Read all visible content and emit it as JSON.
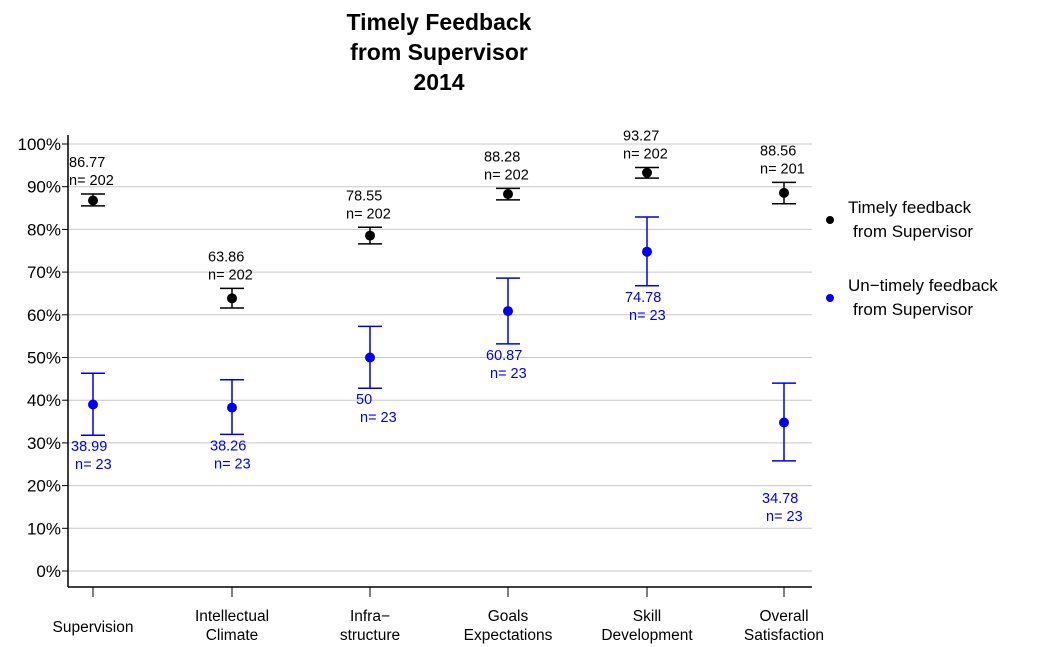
{
  "chart_data": {
    "type": "scatter",
    "title": [
      "Timely Feedback",
      "from Supervisor",
      "2014"
    ],
    "categories": [
      [
        "Supervision"
      ],
      [
        "Intellectual",
        "Climate"
      ],
      [
        "Infra−",
        "structure"
      ],
      [
        "Goals",
        "Expectations"
      ],
      [
        "Skill",
        "Development"
      ],
      [
        "Overall",
        "Satisfaction"
      ]
    ],
    "ylim": [
      0,
      100
    ],
    "yticks": [
      0,
      10,
      20,
      30,
      40,
      50,
      60,
      70,
      80,
      90,
      100
    ],
    "ytick_labels": [
      "0%",
      "10%",
      "20%",
      "30%",
      "40%",
      "50%",
      "60%",
      "70%",
      "80%",
      "90%",
      "100%"
    ],
    "grid": true,
    "legend_position": "right",
    "series": [
      {
        "name": [
          "Timely feedback",
          "from Supervisor"
        ],
        "color": "#000000",
        "values": [
          86.77,
          63.86,
          78.55,
          88.28,
          93.27,
          88.56
        ],
        "err_low": [
          85.5,
          61.6,
          76.6,
          86.9,
          92.0,
          86.0
        ],
        "err_high": [
          88.3,
          66.2,
          80.5,
          89.6,
          94.5,
          91.0
        ],
        "labels": [
          "86.77",
          "63.86",
          "78.55",
          "88.28",
          "93.27",
          "88.56"
        ],
        "n_labels": [
          "n= 202",
          "n= 202",
          "n= 202",
          "n= 202",
          "n= 202",
          "n= 201"
        ]
      },
      {
        "name": [
          "Un−timely feedback",
          "from Supervisor"
        ],
        "color": "#0000ee",
        "values": [
          38.99,
          38.26,
          50,
          60.87,
          74.78,
          34.78
        ],
        "err_low": [
          31.8,
          32.0,
          42.8,
          53.2,
          66.8,
          25.8
        ],
        "err_high": [
          46.3,
          44.8,
          57.3,
          68.6,
          82.9,
          44.0
        ],
        "labels": [
          "38.99",
          "38.26",
          "50",
          "60.87",
          "74.78",
          "34.78"
        ],
        "n_labels": [
          "n= 23",
          "n= 23",
          "n= 23",
          "n= 23",
          "n= 23",
          "n= 23"
        ]
      }
    ]
  }
}
